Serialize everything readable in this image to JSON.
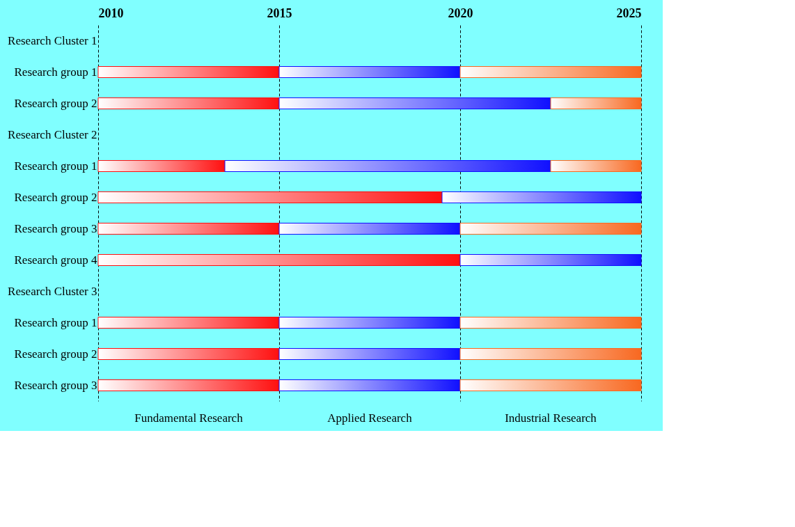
{
  "chart_data": {
    "type": "bar",
    "orientation": "horizontal",
    "categories": [
      "Research Cluster 1",
      "Research group 1",
      "Research group 2",
      "Research Cluster 2",
      "Research group 1",
      "Research group 2",
      "Research group 3",
      "Research group 4",
      "Research Cluster 3",
      "Research group 1",
      "Research group 2",
      "Research group 3"
    ],
    "series": [
      {
        "name": "Fundamental Research",
        "color": "#ff1010",
        "base": [
          null,
          2010,
          2010,
          null,
          2010,
          2010,
          2010,
          2010,
          null,
          2010,
          2010,
          2010
        ],
        "values": [
          null,
          5,
          5,
          null,
          3.5,
          9.5,
          5,
          10,
          null,
          5,
          5,
          5
        ]
      },
      {
        "name": "Applied Research",
        "color": "#1010ff",
        "base": [
          null,
          2015,
          2015,
          null,
          2013.5,
          2019.5,
          2015,
          2020,
          null,
          2015,
          2015,
          2015
        ],
        "values": [
          null,
          5,
          7.5,
          null,
          9,
          5.5,
          5,
          5,
          null,
          5,
          5,
          5
        ]
      },
      {
        "name": "Industrial Research",
        "color": "#f86820",
        "base": [
          null,
          2020,
          2022.5,
          null,
          2022.5,
          null,
          2020,
          null,
          null,
          2020,
          2020,
          2020
        ],
        "values": [
          null,
          5,
          2.5,
          null,
          2.5,
          null,
          5,
          null,
          null,
          5,
          5,
          5
        ]
      }
    ],
    "xlim": [
      2010,
      2025
    ],
    "xticks": [
      2010,
      2015,
      2020,
      2025
    ],
    "grid": "x"
  }
}
